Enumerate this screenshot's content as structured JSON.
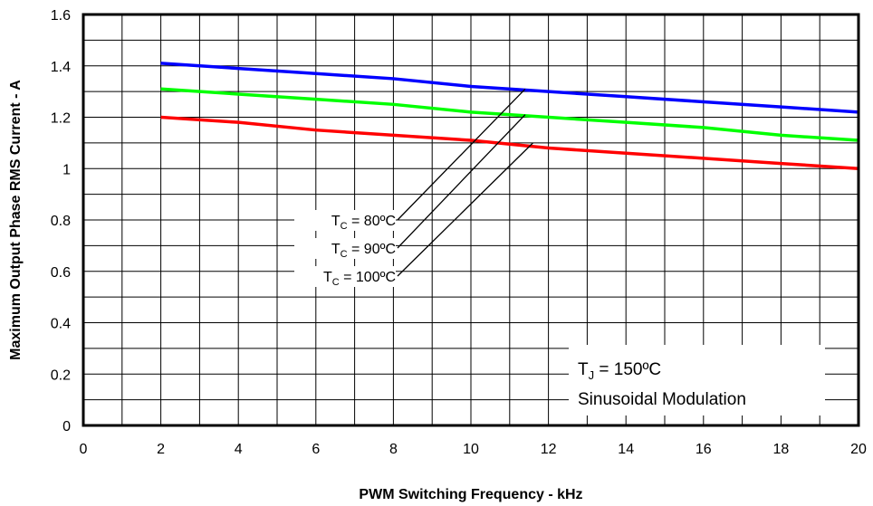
{
  "chart_data": {
    "type": "line",
    "xlabel": "PWM Switching Frequency - kHz",
    "ylabel": "Maximum Output Phase RMS Current - A",
    "xlim": [
      0,
      20
    ],
    "ylim": [
      0,
      1.6
    ],
    "x_ticks": [
      "0",
      "2",
      "4",
      "6",
      "8",
      "10",
      "12",
      "14",
      "16",
      "18",
      "20"
    ],
    "y_ticks": [
      "0",
      "0.2",
      "0.4",
      "0.6",
      "0.8",
      "1",
      "1.2",
      "1.4",
      "1.6"
    ],
    "x_minor_step": 1,
    "y_minor_step": 0.1,
    "grid": true,
    "series": [
      {
        "name": "TC = 80ºC",
        "color": "#0000ff",
        "x": [
          2,
          4,
          6,
          8,
          10,
          12,
          14,
          16,
          18,
          20
        ],
        "y": [
          1.41,
          1.39,
          1.37,
          1.35,
          1.32,
          1.3,
          1.28,
          1.26,
          1.24,
          1.22
        ]
      },
      {
        "name": "TC = 90ºC",
        "color": "#00ff00",
        "x": [
          2,
          4,
          6,
          8,
          10,
          12,
          14,
          16,
          18,
          20
        ],
        "y": [
          1.31,
          1.29,
          1.27,
          1.25,
          1.22,
          1.2,
          1.18,
          1.16,
          1.13,
          1.11
        ]
      },
      {
        "name": "TC = 100ºC",
        "color": "#ff0000",
        "x": [
          2,
          4,
          6,
          8,
          10,
          12,
          14,
          16,
          18,
          20
        ],
        "y": [
          1.2,
          1.18,
          1.15,
          1.13,
          1.11,
          1.08,
          1.06,
          1.04,
          1.02,
          1.0
        ]
      }
    ],
    "curve_labels": [
      {
        "main": "T",
        "sub": "C",
        "rest": " = 80ºC",
        "target": [
          11.4,
          1.31
        ]
      },
      {
        "main": "T",
        "sub": "C",
        "rest": " = 90ºC",
        "target": [
          11.4,
          1.21
        ]
      },
      {
        "main": "T",
        "sub": "C",
        "rest": " = 100ºC",
        "target": [
          11.6,
          1.1
        ]
      }
    ],
    "conditions": {
      "tj": {
        "main": "T",
        "sub": "J",
        "rest": " = 150ºC"
      },
      "modulation": "Sinusoidal Modulation"
    }
  }
}
